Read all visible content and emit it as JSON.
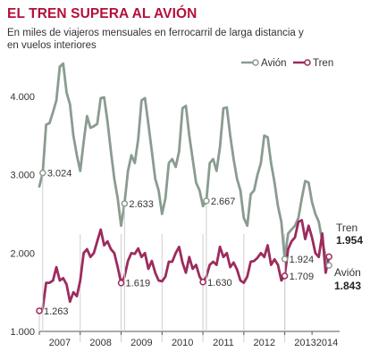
{
  "title": "EL TREN SUPERA AL AVIÓN",
  "subtitle": "En miles de viajeros mensuales en ferrocarril de larga distancia y en vuelos interiores",
  "colors": {
    "avion": "#8a9c90",
    "tren": "#9c2b5e",
    "title": "#b5103a"
  },
  "chart_data": {
    "type": "line",
    "ylim": [
      1000,
      4500
    ],
    "yticks": [
      {
        "value": 1000,
        "label": "1.000"
      },
      {
        "value": 2000,
        "label": "2.000"
      },
      {
        "value": 3000,
        "label": "3.000"
      },
      {
        "value": 4000,
        "label": "4.000"
      }
    ],
    "xlim": [
      0,
      86
    ],
    "xticks": [
      {
        "value": 6,
        "label": "2007"
      },
      {
        "value": 18,
        "label": "2008"
      },
      {
        "value": 30,
        "label": "2009"
      },
      {
        "value": 42,
        "label": "2010"
      },
      {
        "value": 54,
        "label": "2011"
      },
      {
        "value": 66,
        "label": "2012"
      },
      {
        "value": 78,
        "label": "2013"
      },
      {
        "value": 86,
        "label": "2014"
      }
    ],
    "series": [
      {
        "name": "Avión",
        "color": "#8a9c90",
        "values": [
          2850,
          3024,
          3640,
          3660,
          3800,
          3950,
          4380,
          4420,
          4050,
          3900,
          3500,
          3250,
          3050,
          3420,
          3750,
          3600,
          3620,
          3650,
          3980,
          3990,
          3680,
          3300,
          2950,
          2700,
          2350,
          2633,
          3050,
          3250,
          3150,
          3450,
          3950,
          3980,
          3650,
          3300,
          2950,
          2800,
          2500,
          2700,
          3150,
          3200,
          3100,
          3300,
          3850,
          3880,
          3500,
          3200,
          2900,
          2800,
          2600,
          2667,
          3150,
          3200,
          3050,
          3350,
          3850,
          3860,
          3500,
          3200,
          2950,
          2800,
          2450,
          2350,
          2750,
          2800,
          3000,
          3150,
          3500,
          3480,
          3150,
          2900,
          2600,
          2400,
          1924,
          2250,
          2300,
          2350,
          2450,
          2700,
          2920,
          2900,
          2650,
          2500,
          2400,
          2150,
          1950,
          1843
        ]
      },
      {
        "name": "Tren",
        "color": "#9c2b5e",
        "values": [
          1263,
          1290,
          1620,
          1620,
          1650,
          1820,
          1650,
          1680,
          1600,
          1380,
          1500,
          1450,
          1650,
          2000,
          2050,
          1950,
          2000,
          2150,
          2300,
          2100,
          2150,
          2050,
          2000,
          1820,
          1619,
          1700,
          1900,
          2000,
          1990,
          2060,
          1950,
          2000,
          1800,
          1900,
          1750,
          1650,
          1640,
          1700,
          1890,
          1890,
          2000,
          2080,
          1880,
          1750,
          1950,
          1800,
          1850,
          1700,
          1630,
          1700,
          1850,
          1890,
          1850,
          2080,
          1950,
          2000,
          1820,
          1880,
          1790,
          1650,
          1620,
          1700,
          1890,
          1900,
          1940,
          2000,
          1950,
          2100,
          1850,
          1920,
          1850,
          1650,
          1709,
          2050,
          2150,
          2200,
          2400,
          2420,
          2180,
          2350,
          2200,
          2000,
          1950,
          2250,
          1750,
          1954
        ]
      }
    ],
    "annotations": [
      {
        "series": "Avión",
        "index": 1,
        "label": "3.024",
        "side": "right"
      },
      {
        "series": "Avión",
        "index": 25,
        "label": "2.633",
        "side": "right"
      },
      {
        "series": "Avión",
        "index": 49,
        "label": "2.667",
        "side": "right"
      },
      {
        "series": "Avión",
        "index": 72,
        "label": "1.924",
        "side": "right"
      },
      {
        "series": "Tren",
        "index": 0,
        "label": "1.263",
        "side": "right"
      },
      {
        "series": "Tren",
        "index": 24,
        "label": "1.619",
        "side": "right"
      },
      {
        "series": "Tren",
        "index": 48,
        "label": "1.630",
        "side": "right"
      },
      {
        "series": "Tren",
        "index": 72,
        "label": "1.709",
        "side": "right"
      }
    ],
    "end_labels": [
      {
        "series": "Tren",
        "name": "Tren",
        "value": "1.954"
      },
      {
        "series": "Avión",
        "name": "Avión",
        "value": "1.843"
      }
    ],
    "legend": {
      "placement": "top-right",
      "items": [
        "Avión",
        "Tren"
      ]
    },
    "grid": "vertical-year-lines"
  }
}
